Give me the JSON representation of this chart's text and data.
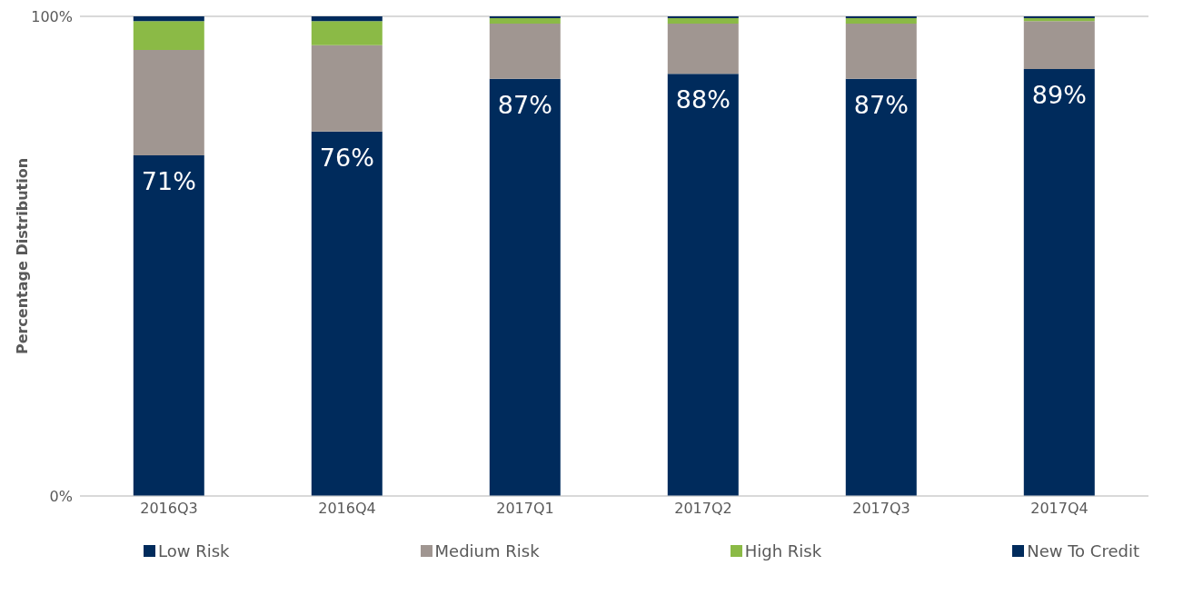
{
  "chart_data": {
    "type": "bar",
    "stacked": true,
    "ylabel": "Percentage Distribution",
    "categories": [
      "2016Q3",
      "2016Q4",
      "2017Q1",
      "2017Q2",
      "2017Q3",
      "2017Q4"
    ],
    "series": [
      {
        "name": "Low Risk",
        "color": "#002b5c",
        "values": [
          71,
          76,
          87,
          88,
          87,
          89
        ],
        "value_labels": [
          "71%",
          "76%",
          "87%",
          "88%",
          "87%",
          "89%"
        ]
      },
      {
        "name": "Medium Risk",
        "color": "#a09691",
        "values": [
          22,
          18,
          11.5,
          10.5,
          11.5,
          10
        ]
      },
      {
        "name": "High Risk",
        "color": "#8bba46",
        "values": [
          6,
          5,
          1.1,
          1.1,
          1.1,
          0.6
        ]
      },
      {
        "name": "New To Credit",
        "color": "#002b5c",
        "values": [
          1,
          1,
          0.4,
          0.4,
          0.4,
          0.4
        ]
      }
    ],
    "ylim": [
      0,
      100
    ],
    "yticks": [
      {
        "value": 0,
        "label": "0%"
      },
      {
        "value": 100,
        "label": "100%"
      }
    ],
    "grid": "y",
    "legend": "bottom"
  }
}
